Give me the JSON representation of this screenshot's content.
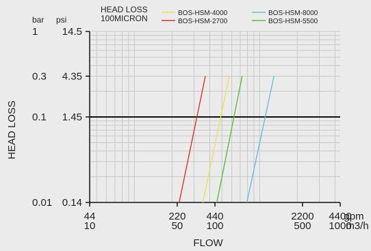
{
  "chart_data": {
    "type": "line",
    "title": "HEAD LOSS\n100MICRON",
    "title_lines": [
      "HEAD LOSS",
      "100MICRON"
    ],
    "xlabel": "FLOW",
    "ylabel": "HEAD LOSS",
    "x_scale": "log",
    "y_scale": "log",
    "xlim_gpm": [
      44,
      4400
    ],
    "ylim_bar": [
      0.01,
      1
    ],
    "grid": true,
    "legend_position": "top",
    "x_units": {
      "gpm": "gpm",
      "m3h": "m3/h"
    },
    "y_units": {
      "bar": "bar",
      "psi": "psi"
    },
    "x_ticks": [
      {
        "gpm": 44,
        "gpm_label": "44",
        "m3h_label": "10"
      },
      {
        "gpm": 220,
        "gpm_label": "220",
        "m3h_label": "50"
      },
      {
        "gpm": 440,
        "gpm_label": "440",
        "m3h_label": "100"
      },
      {
        "gpm": 2200,
        "gpm_label": "2200",
        "m3h_label": "500"
      },
      {
        "gpm": 4400,
        "gpm_label": "4400",
        "m3h_label": "1000"
      }
    ],
    "y_ticks": [
      {
        "bar": 1,
        "bar_label": "1",
        "psi_label": "14.5"
      },
      {
        "bar": 0.3,
        "bar_label": "0.3",
        "psi_label": "4.35"
      },
      {
        "bar": 0.1,
        "bar_label": "0.1",
        "psi_label": "1.45"
      },
      {
        "bar": 0.01,
        "bar_label": "0.01",
        "psi_label": "0.14"
      }
    ],
    "series": [
      {
        "name": "BOS-HSM-4000",
        "color": "#e7e74a",
        "x": [
          352,
          573
        ],
        "y": [
          0.01,
          0.3
        ]
      },
      {
        "name": "BOS-HSM-2700",
        "color": "#e03030",
        "x": [
          228,
          369
        ],
        "y": [
          0.01,
          0.3
        ]
      },
      {
        "name": "BOS-HSM-8000",
        "color": "#5ec4d4",
        "x": [
          792,
          1302
        ],
        "y": [
          0.01,
          0.3
        ]
      },
      {
        "name": "BOS-HSM-5500",
        "color": "#5cbf34",
        "x": [
          456,
          725
        ],
        "y": [
          0.01,
          0.3
        ]
      }
    ]
  }
}
